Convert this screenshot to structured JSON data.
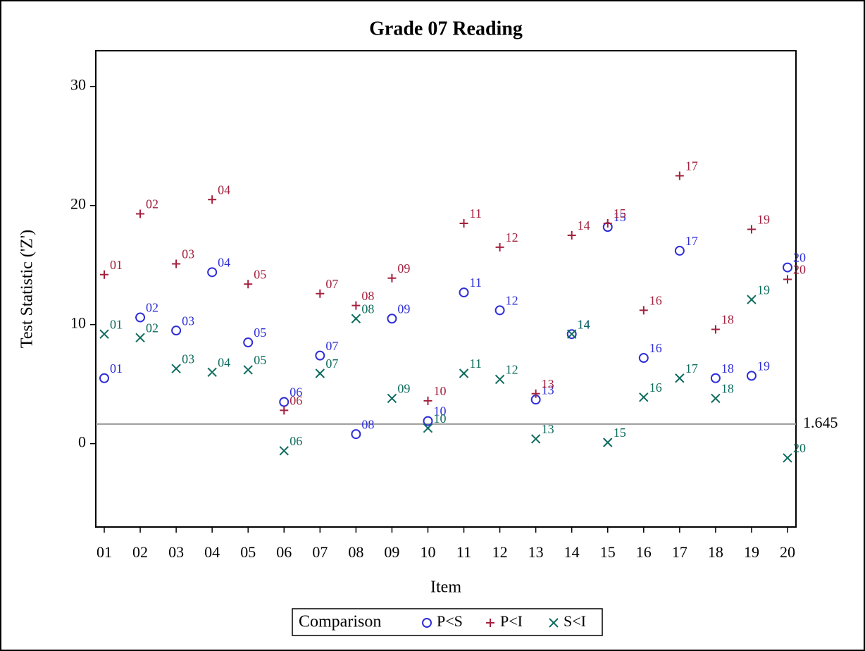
{
  "chart_data": {
    "type": "scatter",
    "title": "Grade 07 Reading",
    "x_label": "Item",
    "y_label": "Test Statistic ('Z')",
    "categories": [
      "01",
      "02",
      "03",
      "04",
      "05",
      "06",
      "07",
      "08",
      "09",
      "10",
      "11",
      "12",
      "13",
      "14",
      "15",
      "16",
      "17",
      "18",
      "19",
      "20"
    ],
    "series": [
      {
        "name": "P<S",
        "color": "#2e2ed8",
        "marker": "circle",
        "values": [
          5.5,
          10.6,
          9.5,
          14.4,
          8.5,
          3.5,
          7.4,
          0.8,
          10.5,
          1.9,
          12.7,
          11.2,
          3.7,
          9.2,
          18.2,
          7.2,
          16.2,
          5.5,
          5.7,
          14.8
        ]
      },
      {
        "name": "P<I",
        "color": "#a3203c",
        "marker": "plus",
        "values": [
          14.2,
          19.3,
          15.1,
          20.5,
          13.4,
          2.8,
          12.6,
          11.6,
          13.9,
          3.6,
          18.5,
          16.5,
          4.2,
          17.5,
          18.5,
          11.2,
          22.5,
          9.6,
          18.0,
          13.8
        ]
      },
      {
        "name": "S<I",
        "color": "#0d6b5e",
        "marker": "x",
        "values": [
          9.2,
          8.9,
          6.3,
          6.0,
          6.2,
          -0.6,
          5.9,
          10.5,
          3.8,
          1.3,
          5.9,
          5.4,
          0.4,
          9.2,
          0.1,
          3.9,
          5.5,
          3.8,
          12.1,
          -1.2
        ]
      }
    ],
    "ylim": [
      -7,
      33
    ],
    "yticks": [
      0,
      10,
      20,
      30
    ],
    "reference_line": 1.645,
    "legend_title": "Comparison",
    "legend": "bottom"
  }
}
